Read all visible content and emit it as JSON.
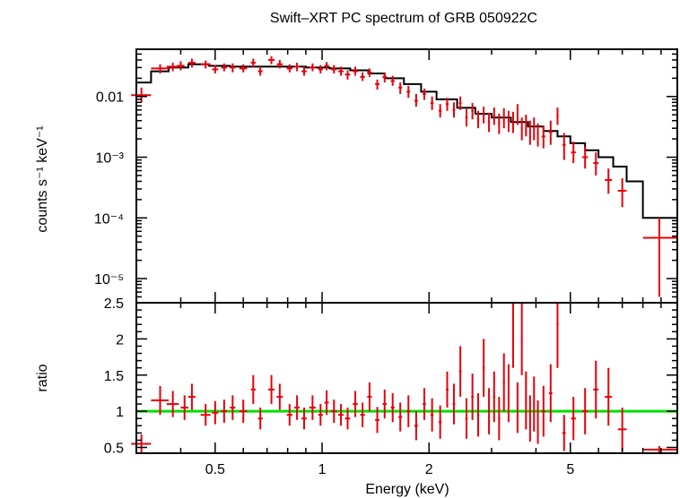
{
  "title": "Swift–XRT PC spectrum of GRB 050922C",
  "colors": {
    "data": "#e8000b",
    "model": "#000000",
    "unity": "#00e000",
    "frame": "#000000"
  },
  "chart_data": [
    {
      "type": "scatter",
      "panel": "spectrum",
      "xscale": "log",
      "yscale": "log",
      "xlim": [
        0.3,
        10
      ],
      "ylim": [
        4e-06,
        0.06
      ],
      "ylabel": "counts s⁻¹ keV⁻¹",
      "yticks": [
        {
          "value": 0.01,
          "label": "0.01"
        },
        {
          "value": 0.001,
          "label": "10⁻³"
        },
        {
          "value": 0.0001,
          "label": "10⁻⁴"
        },
        {
          "value": 1e-05,
          "label": "10⁻⁵"
        }
      ],
      "model_steps": [
        [
          0.3,
          0.017
        ],
        [
          0.33,
          0.026
        ],
        [
          0.37,
          0.03
        ],
        [
          0.42,
          0.034
        ],
        [
          0.48,
          0.032
        ],
        [
          0.55,
          0.031
        ],
        [
          0.65,
          0.031
        ],
        [
          0.75,
          0.031
        ],
        [
          0.9,
          0.03
        ],
        [
          1.05,
          0.029
        ],
        [
          1.2,
          0.027
        ],
        [
          1.35,
          0.024
        ],
        [
          1.5,
          0.02
        ],
        [
          1.7,
          0.016
        ],
        [
          1.9,
          0.012
        ],
        [
          2.1,
          0.009
        ],
        [
          2.4,
          0.0065
        ],
        [
          2.7,
          0.0052
        ],
        [
          3.0,
          0.0045
        ],
        [
          3.4,
          0.0038
        ],
        [
          3.8,
          0.0032
        ],
        [
          4.2,
          0.0027
        ],
        [
          4.6,
          0.0022
        ],
        [
          5.0,
          0.0017
        ],
        [
          5.5,
          0.0013
        ],
        [
          6.0,
          0.001
        ],
        [
          6.6,
          0.0007
        ],
        [
          7.2,
          0.0004
        ],
        [
          8.0,
          0.0001
        ],
        [
          10,
          0.0001
        ]
      ],
      "points": [
        [
          0.31,
          0.0105,
          0.29,
          0.33,
          0.008,
          0.014
        ],
        [
          0.35,
          0.029,
          0.33,
          0.37,
          0.024,
          0.034
        ],
        [
          0.38,
          0.031,
          0.365,
          0.395,
          0.026,
          0.036
        ],
        [
          0.4,
          0.032,
          0.39,
          0.41,
          0.027,
          0.038
        ],
        [
          0.43,
          0.036,
          0.42,
          0.44,
          0.03,
          0.042
        ],
        [
          0.47,
          0.034,
          0.455,
          0.485,
          0.029,
          0.039
        ],
        [
          0.5,
          0.028,
          0.49,
          0.51,
          0.024,
          0.033
        ],
        [
          0.53,
          0.03,
          0.52,
          0.54,
          0.026,
          0.035
        ],
        [
          0.56,
          0.03,
          0.55,
          0.57,
          0.025,
          0.035
        ],
        [
          0.6,
          0.029,
          0.585,
          0.615,
          0.025,
          0.034
        ],
        [
          0.64,
          0.036,
          0.63,
          0.65,
          0.03,
          0.042
        ],
        [
          0.67,
          0.026,
          0.66,
          0.68,
          0.022,
          0.031
        ],
        [
          0.72,
          0.04,
          0.705,
          0.735,
          0.034,
          0.046
        ],
        [
          0.76,
          0.034,
          0.745,
          0.775,
          0.029,
          0.04
        ],
        [
          0.81,
          0.029,
          0.795,
          0.825,
          0.025,
          0.034
        ],
        [
          0.85,
          0.031,
          0.835,
          0.865,
          0.026,
          0.036
        ],
        [
          0.89,
          0.026,
          0.875,
          0.905,
          0.022,
          0.031
        ],
        [
          0.94,
          0.03,
          0.92,
          0.96,
          0.026,
          0.035
        ],
        [
          0.99,
          0.028,
          0.975,
          1.005,
          0.024,
          0.033
        ],
        [
          1.03,
          0.032,
          1.015,
          1.045,
          0.027,
          0.037
        ],
        [
          1.08,
          0.028,
          1.06,
          1.1,
          0.024,
          0.033
        ],
        [
          1.13,
          0.026,
          1.11,
          1.15,
          0.022,
          0.031
        ],
        [
          1.18,
          0.023,
          1.16,
          1.2,
          0.019,
          0.027
        ],
        [
          1.24,
          0.026,
          1.22,
          1.26,
          0.022,
          0.031
        ],
        [
          1.3,
          0.021,
          1.28,
          1.32,
          0.018,
          0.025
        ],
        [
          1.36,
          0.025,
          1.34,
          1.38,
          0.021,
          0.029
        ],
        [
          1.43,
          0.016,
          1.41,
          1.45,
          0.013,
          0.019
        ],
        [
          1.5,
          0.021,
          1.48,
          1.52,
          0.017,
          0.025
        ],
        [
          1.58,
          0.018,
          1.56,
          1.6,
          0.015,
          0.022
        ],
        [
          1.66,
          0.014,
          1.64,
          1.68,
          0.011,
          0.017
        ],
        [
          1.75,
          0.012,
          1.73,
          1.77,
          0.0095,
          0.015
        ],
        [
          1.84,
          0.0085,
          1.82,
          1.86,
          0.0068,
          0.011
        ],
        [
          1.94,
          0.011,
          1.92,
          1.96,
          0.0088,
          0.0135
        ],
        [
          2.04,
          0.0078,
          2.02,
          2.06,
          0.006,
          0.01
        ],
        [
          2.15,
          0.0058,
          2.13,
          2.17,
          0.0045,
          0.0075
        ],
        [
          2.25,
          0.0075,
          2.23,
          2.27,
          0.0058,
          0.0095
        ],
        [
          2.35,
          0.006,
          2.33,
          2.37,
          0.0045,
          0.008
        ],
        [
          2.45,
          0.0078,
          2.43,
          2.47,
          0.006,
          0.01
        ],
        [
          2.55,
          0.0045,
          2.53,
          2.57,
          0.0032,
          0.0062
        ],
        [
          2.65,
          0.0058,
          2.63,
          2.67,
          0.0042,
          0.0078
        ],
        [
          2.75,
          0.0042,
          2.73,
          2.77,
          0.003,
          0.0058
        ],
        [
          2.85,
          0.005,
          2.83,
          2.87,
          0.0036,
          0.0068
        ],
        [
          2.95,
          0.0038,
          2.93,
          2.97,
          0.0026,
          0.0054
        ],
        [
          3.05,
          0.0048,
          3.03,
          3.07,
          0.0034,
          0.0066
        ],
        [
          3.15,
          0.0036,
          3.13,
          3.17,
          0.0024,
          0.0052
        ],
        [
          3.25,
          0.0045,
          3.23,
          3.27,
          0.003,
          0.0064
        ],
        [
          3.35,
          0.004,
          3.33,
          3.37,
          0.0026,
          0.0058
        ],
        [
          3.45,
          0.0038,
          3.43,
          3.47,
          0.0025,
          0.0056
        ],
        [
          3.55,
          0.0052,
          3.53,
          3.57,
          0.0034,
          0.0075
        ],
        [
          3.65,
          0.003,
          3.63,
          3.67,
          0.0019,
          0.0045
        ],
        [
          3.75,
          0.0034,
          3.73,
          3.77,
          0.0022,
          0.005
        ],
        [
          3.85,
          0.0026,
          3.83,
          3.87,
          0.0016,
          0.004
        ],
        [
          3.95,
          0.003,
          3.93,
          3.97,
          0.0019,
          0.0045
        ],
        [
          4.05,
          0.0024,
          4.03,
          4.07,
          0.0015,
          0.0036
        ],
        [
          4.2,
          0.0022,
          4.15,
          4.25,
          0.0014,
          0.0033
        ],
        [
          4.4,
          0.0026,
          4.35,
          4.45,
          0.0016,
          0.004
        ],
        [
          4.6,
          0.0048,
          4.57,
          4.63,
          0.0034,
          0.0066
        ],
        [
          4.8,
          0.0016,
          4.75,
          4.85,
          0.0009,
          0.0025
        ],
        [
          5.1,
          0.0012,
          5.02,
          5.18,
          0.0008,
          0.0018
        ],
        [
          5.5,
          0.001,
          5.4,
          5.6,
          0.00065,
          0.0015
        ],
        [
          5.9,
          0.0008,
          5.8,
          6.0,
          0.0005,
          0.0012
        ],
        [
          6.4,
          0.00042,
          6.25,
          6.55,
          0.00025,
          0.00065
        ],
        [
          7.0,
          0.00028,
          6.8,
          7.2,
          0.00015,
          0.00045
        ],
        [
          8.9,
          4.7e-05,
          8.0,
          10.0,
          5e-06,
          0.0001
        ]
      ]
    },
    {
      "type": "scatter",
      "panel": "ratio",
      "xscale": "log",
      "xlim": [
        0.3,
        10
      ],
      "ylim": [
        0.42,
        2.5
      ],
      "xlabel": "Energy (keV)",
      "ylabel": "ratio",
      "unity_line": 1,
      "xticks": [
        {
          "value": 0.5,
          "label": "0.5"
        },
        {
          "value": 1,
          "label": "1"
        },
        {
          "value": 2,
          "label": "2"
        },
        {
          "value": 5,
          "label": "5"
        }
      ],
      "yticks": [
        {
          "value": 0.5,
          "label": "0.5"
        },
        {
          "value": 1,
          "label": "1"
        },
        {
          "value": 1.5,
          "label": "1.5"
        },
        {
          "value": 2,
          "label": "2"
        },
        {
          "value": 2.5,
          "label": "2.5"
        }
      ],
      "points": [
        [
          0.31,
          0.55,
          0.29,
          0.33,
          0.42,
          0.68
        ],
        [
          0.35,
          1.15,
          0.33,
          0.37,
          0.95,
          1.35
        ],
        [
          0.38,
          1.1,
          0.365,
          0.395,
          0.92,
          1.28
        ],
        [
          0.41,
          1.05,
          0.4,
          0.42,
          0.88,
          1.22
        ],
        [
          0.43,
          1.2,
          0.42,
          0.44,
          1.02,
          1.38
        ],
        [
          0.47,
          0.95,
          0.455,
          0.485,
          0.8,
          1.1
        ],
        [
          0.5,
          0.98,
          0.49,
          0.51,
          0.82,
          1.14
        ],
        [
          0.53,
          1.0,
          0.52,
          0.54,
          0.84,
          1.16
        ],
        [
          0.56,
          1.05,
          0.55,
          0.57,
          0.88,
          1.22
        ],
        [
          0.6,
          1.0,
          0.585,
          0.615,
          0.84,
          1.16
        ],
        [
          0.64,
          1.3,
          0.63,
          0.65,
          1.1,
          1.5
        ],
        [
          0.67,
          0.9,
          0.66,
          0.68,
          0.75,
          1.05
        ],
        [
          0.72,
          1.3,
          0.705,
          0.735,
          1.1,
          1.5
        ],
        [
          0.76,
          1.2,
          0.745,
          0.775,
          1.02,
          1.38
        ],
        [
          0.81,
          0.95,
          0.795,
          0.825,
          0.8,
          1.1
        ],
        [
          0.85,
          1.05,
          0.835,
          0.865,
          0.88,
          1.22
        ],
        [
          0.89,
          0.9,
          0.875,
          0.905,
          0.75,
          1.05
        ],
        [
          0.94,
          1.05,
          0.92,
          0.96,
          0.88,
          1.22
        ],
        [
          0.99,
          0.95,
          0.975,
          1.005,
          0.8,
          1.1
        ],
        [
          1.03,
          1.12,
          1.015,
          1.045,
          0.95,
          1.29
        ],
        [
          1.08,
          1.0,
          1.06,
          1.1,
          0.84,
          1.16
        ],
        [
          1.13,
          0.95,
          1.11,
          1.15,
          0.8,
          1.1
        ],
        [
          1.18,
          0.9,
          1.16,
          1.2,
          0.75,
          1.05
        ],
        [
          1.24,
          1.1,
          1.22,
          1.26,
          0.92,
          1.28
        ],
        [
          1.3,
          0.95,
          1.28,
          1.32,
          0.78,
          1.12
        ],
        [
          1.36,
          1.2,
          1.34,
          1.38,
          1.0,
          1.4
        ],
        [
          1.43,
          0.88,
          1.41,
          1.45,
          0.7,
          1.06
        ],
        [
          1.5,
          1.1,
          1.48,
          1.52,
          0.9,
          1.3
        ],
        [
          1.58,
          1.05,
          1.56,
          1.6,
          0.85,
          1.25
        ],
        [
          1.66,
          0.92,
          1.64,
          1.68,
          0.72,
          1.12
        ],
        [
          1.75,
          1.0,
          1.73,
          1.77,
          0.78,
          1.22
        ],
        [
          1.84,
          0.8,
          1.82,
          1.86,
          0.6,
          1.0
        ],
        [
          1.94,
          1.1,
          1.92,
          1.96,
          0.88,
          1.32
        ],
        [
          2.04,
          0.95,
          2.02,
          2.06,
          0.72,
          1.18
        ],
        [
          2.15,
          0.85,
          2.13,
          2.17,
          0.62,
          1.08
        ],
        [
          2.25,
          1.3,
          2.23,
          2.27,
          1.05,
          1.55
        ],
        [
          2.35,
          1.1,
          2.33,
          2.37,
          0.82,
          1.38
        ],
        [
          2.45,
          1.55,
          2.43,
          2.47,
          1.2,
          1.9
        ],
        [
          2.55,
          0.9,
          2.53,
          2.57,
          0.62,
          1.18
        ],
        [
          2.65,
          1.2,
          2.63,
          2.67,
          0.88,
          1.52
        ],
        [
          2.75,
          0.95,
          2.73,
          2.77,
          0.65,
          1.25
        ],
        [
          2.85,
          1.6,
          2.83,
          2.87,
          1.2,
          2.0
        ],
        [
          2.95,
          1.0,
          2.93,
          2.97,
          0.68,
          1.32
        ],
        [
          3.05,
          1.2,
          3.03,
          3.07,
          0.85,
          1.55
        ],
        [
          3.15,
          0.9,
          3.13,
          3.17,
          0.6,
          1.2
        ],
        [
          3.25,
          1.4,
          3.23,
          3.27,
          1.0,
          1.8
        ],
        [
          3.35,
          1.25,
          3.33,
          3.37,
          0.85,
          1.65
        ],
        [
          3.45,
          2.1,
          3.43,
          3.47,
          1.6,
          2.5
        ],
        [
          3.55,
          1.05,
          3.53,
          3.57,
          0.7,
          1.4
        ],
        [
          3.65,
          2.0,
          3.63,
          3.67,
          1.5,
          2.5
        ],
        [
          3.75,
          1.15,
          3.73,
          3.77,
          0.75,
          1.55
        ],
        [
          3.85,
          0.9,
          3.83,
          3.87,
          0.58,
          1.22
        ],
        [
          3.95,
          1.1,
          3.93,
          3.97,
          0.72,
          1.48
        ],
        [
          4.05,
          0.85,
          4.03,
          4.07,
          0.55,
          1.15
        ],
        [
          4.2,
          1.0,
          4.15,
          4.25,
          0.65,
          1.35
        ],
        [
          4.4,
          1.25,
          4.35,
          4.45,
          0.85,
          1.65
        ],
        [
          4.6,
          2.2,
          4.57,
          4.63,
          1.6,
          2.5
        ],
        [
          4.8,
          0.7,
          4.75,
          4.85,
          0.45,
          0.95
        ],
        [
          5.1,
          0.9,
          5.02,
          5.18,
          0.6,
          1.2
        ],
        [
          5.5,
          1.0,
          5.4,
          5.6,
          0.68,
          1.32
        ],
        [
          5.9,
          1.3,
          5.8,
          6.0,
          0.9,
          1.7
        ],
        [
          6.4,
          1.2,
          6.25,
          6.55,
          0.8,
          1.6
        ],
        [
          7.0,
          0.75,
          6.8,
          7.2,
          0.45,
          1.05
        ],
        [
          8.9,
          0.47,
          8.0,
          10.0,
          0.42,
          0.52
        ]
      ]
    }
  ]
}
